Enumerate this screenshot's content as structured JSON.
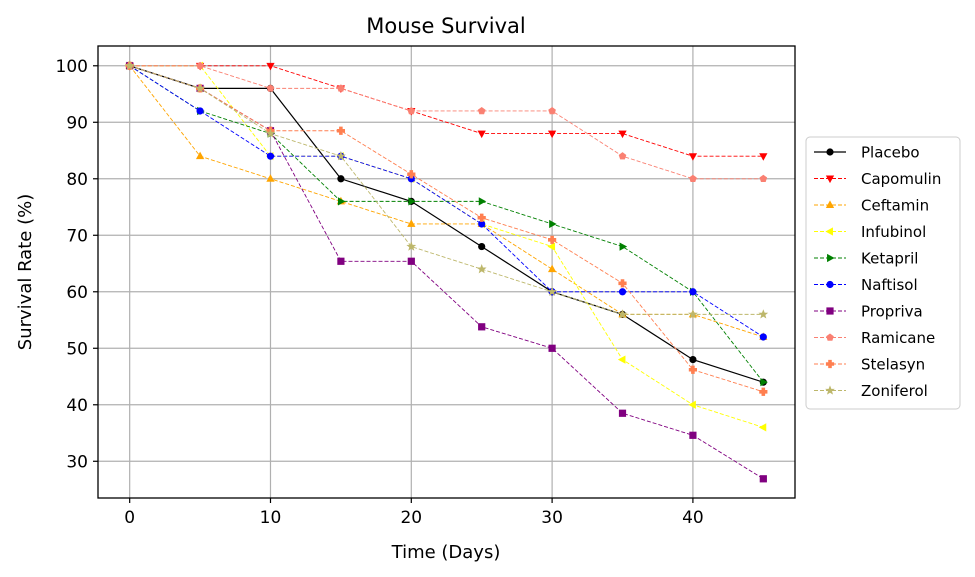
{
  "chart_data": {
    "type": "line",
    "title": "Mouse Survival",
    "xlabel": "Time (Days)",
    "ylabel": "Survival Rate (%)",
    "xlim": [
      -2.25,
      47.25
    ],
    "ylim": [
      23.5,
      103.5
    ],
    "xticks": [
      0,
      10,
      20,
      30,
      40
    ],
    "yticks": [
      30,
      40,
      50,
      60,
      70,
      80,
      90,
      100
    ],
    "grid": true,
    "legend_position": "center-right outside",
    "x": [
      0,
      5,
      10,
      15,
      20,
      25,
      30,
      35,
      40,
      45
    ],
    "series": [
      {
        "name": "Placebo",
        "color": "#000000",
        "marker": "circle",
        "dashed": false,
        "values": [
          100,
          96,
          96,
          80,
          76,
          68,
          60,
          56,
          48,
          44
        ]
      },
      {
        "name": "Capomulin",
        "color": "#ff0000",
        "marker": "triangle-down",
        "dashed": true,
        "values": [
          100,
          100,
          100,
          96,
          92,
          88,
          88,
          88,
          84,
          84
        ]
      },
      {
        "name": "Ceftamin",
        "color": "#ffa500",
        "marker": "triangle-up",
        "dashed": true,
        "values": [
          100,
          84,
          80,
          76,
          72,
          72,
          64,
          56,
          56,
          52
        ]
      },
      {
        "name": "Infubinol",
        "color": "#ffff00",
        "marker": "triangle-left",
        "dashed": true,
        "values": [
          100,
          100,
          84,
          84,
          80,
          72,
          68,
          48,
          40,
          36
        ]
      },
      {
        "name": "Ketapril",
        "color": "#008000",
        "marker": "triangle-right",
        "dashed": true,
        "values": [
          100,
          92,
          88,
          76,
          76,
          76,
          72,
          68,
          60,
          44
        ]
      },
      {
        "name": "Naftisol",
        "color": "#0000ff",
        "marker": "circle",
        "dashed": true,
        "values": [
          100,
          92,
          84,
          84,
          80,
          72,
          60,
          60,
          60,
          52
        ]
      },
      {
        "name": "Propriva",
        "color": "#800080",
        "marker": "square",
        "dashed": true,
        "values": [
          100,
          96,
          88.5,
          65.4,
          65.4,
          53.8,
          50,
          38.5,
          34.6,
          26.9
        ]
      },
      {
        "name": "Ramicane",
        "color": "#fa8072",
        "marker": "pentagon",
        "dashed": true,
        "values": [
          100,
          100,
          96,
          96,
          92,
          92,
          92,
          84,
          80,
          80
        ]
      },
      {
        "name": "Stelasyn",
        "color": "#ff7f50",
        "marker": "plus",
        "dashed": true,
        "values": [
          100,
          96,
          88.5,
          88.5,
          80.8,
          73.1,
          69.2,
          61.5,
          46.2,
          42.3
        ]
      },
      {
        "name": "Zoniferol",
        "color": "#bdb76b",
        "marker": "star",
        "dashed": true,
        "values": [
          100,
          96,
          88,
          84,
          68,
          64,
          60,
          56,
          56,
          56
        ]
      }
    ]
  }
}
